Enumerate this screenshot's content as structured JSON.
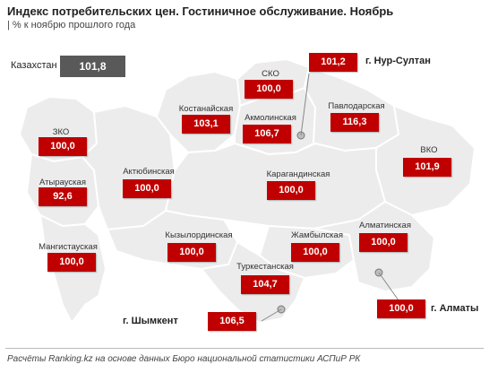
{
  "title": "Индекс потребительских цен. Гостиничное обслуживание. Ноябрь",
  "subtitle": "| % к ноябрю прошлого года",
  "national": {
    "label": "Казахстан",
    "value": "101,8"
  },
  "colors": {
    "value_box": "#c00000",
    "national_box": "#595959",
    "map_fill": "#ececec",
    "map_border": "#ffffff"
  },
  "regions": [
    {
      "name": "ЗКО",
      "value": "100,0"
    },
    {
      "name": "Атырауская",
      "value": "92,6"
    },
    {
      "name": "Мангистауская",
      "value": "100,0"
    },
    {
      "name": "Актюбинская",
      "value": "100,0"
    },
    {
      "name": "Костанайская",
      "value": "103,1"
    },
    {
      "name": "СКО",
      "value": "100,0"
    },
    {
      "name": "Акмолинская",
      "value": "106,7"
    },
    {
      "name": "Павлодарская",
      "value": "116,3"
    },
    {
      "name": "ВКО",
      "value": "101,9"
    },
    {
      "name": "Карагандинская",
      "value": "100,0"
    },
    {
      "name": "Кызылординская",
      "value": "100,0"
    },
    {
      "name": "Жамбылская",
      "value": "100,0"
    },
    {
      "name": "Алматинская",
      "value": "100,0"
    },
    {
      "name": "Туркестанская",
      "value": "104,7"
    }
  ],
  "cities": [
    {
      "name": "г. Нур-Султан",
      "value": "101,2"
    },
    {
      "name": "г. Алматы",
      "value": "100,0"
    },
    {
      "name": "г. Шымкент",
      "value": "106,5"
    }
  ],
  "footer": "Расчёты Ranking.kz на основе данных Бюро национальной статистики АСПиР РК"
}
